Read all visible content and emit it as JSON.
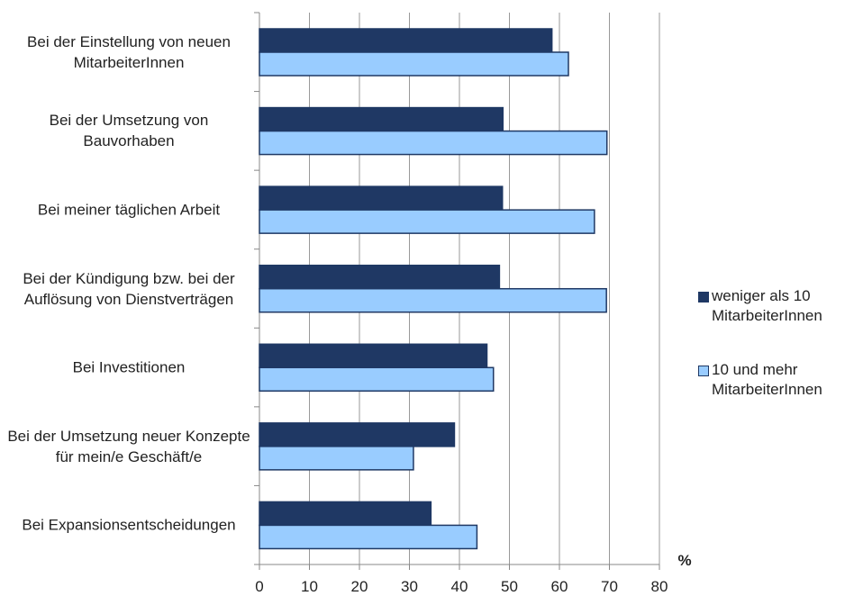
{
  "chart_data": {
    "type": "bar",
    "orientation": "horizontal",
    "categories": [
      "Bei der Einstellung von neuen MitarbeiterInnen",
      "Bei der Umsetzung von Bauvorhaben",
      "Bei meiner täglichen Arbeit",
      "Bei der Kündigung bzw. bei der Auflösung von Dienstverträgen",
      "Bei Investitionen",
      "Bei der Umsetzung neuer Konzepte für mein/e Geschäft/e",
      "Bei Expansionsentscheidungen"
    ],
    "series": [
      {
        "name": "weniger als 10 MitarbeiterInnen",
        "color": "#1f3864",
        "values": [
          58.5,
          48.7,
          48.6,
          48,
          45.5,
          39,
          34.3
        ]
      },
      {
        "name": "10 und mehr MitarbeiterInnen",
        "color": "#99ccff",
        "values": [
          61.8,
          69.5,
          67,
          69.4,
          46.8,
          30.8,
          43.5
        ]
      }
    ],
    "xlabel": "%",
    "xlim": [
      0,
      80
    ],
    "xticks": [
      0,
      10,
      20,
      30,
      40,
      50,
      60,
      70,
      80
    ],
    "grid": true,
    "legend": "right"
  }
}
